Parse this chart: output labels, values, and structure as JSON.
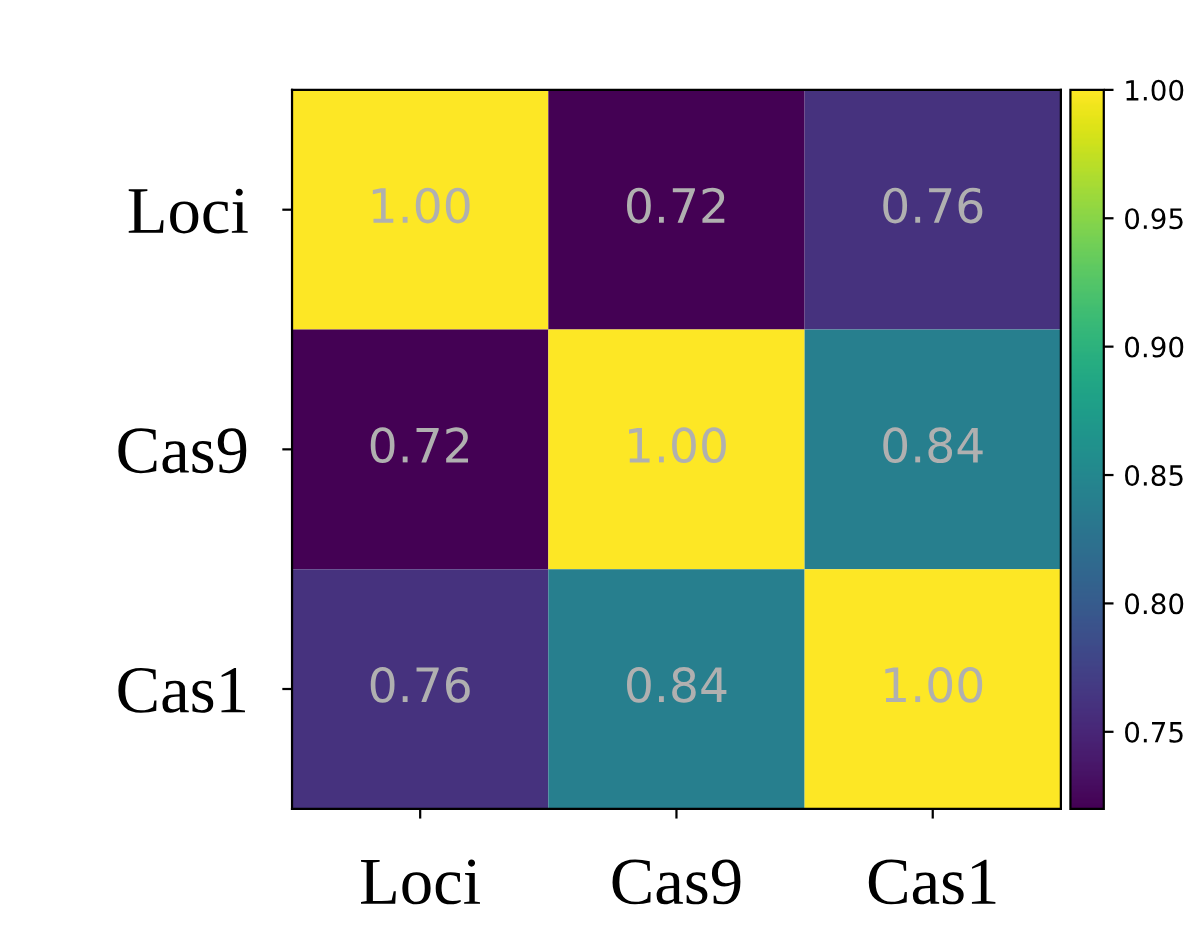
{
  "chart_data": {
    "type": "heatmap",
    "categories": [
      "Loci",
      "Cas9",
      "Cas1"
    ],
    "y_categories": [
      "Loci",
      "Cas9",
      "Cas1"
    ],
    "cells": [
      [
        1.0,
        0.72,
        0.76
      ],
      [
        0.72,
        1.0,
        0.84
      ],
      [
        0.76,
        0.84,
        1.0
      ]
    ],
    "cell_labels": [
      [
        "1.00",
        "0.72",
        "0.76"
      ],
      [
        "0.72",
        "1.00",
        "0.84"
      ],
      [
        "0.76",
        "0.84",
        "1.00"
      ]
    ],
    "clim": [
      0.72,
      1.0
    ],
    "cticks": [
      0.75,
      {
        "value": 0.8,
        "label": "0.80"
      },
      0.85,
      {
        "value": 0.9,
        "label": "0.90"
      },
      0.95,
      {
        "value": 1,
        "label": "1.00"
      }
    ]
  }
}
